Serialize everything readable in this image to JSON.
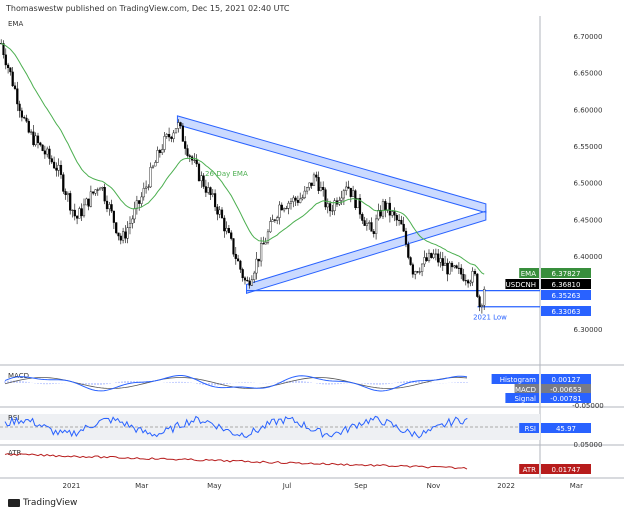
{
  "header": {
    "published": "Thomaswestw published on TradingView.com, Dec 15, 2021 02:40 UTC"
  },
  "footer": {
    "brand": "TradingView"
  },
  "colors": {
    "ema": "#4caf50",
    "up": "#ffffff",
    "down": "#000000",
    "blue": "#2962ff",
    "triangle_fill": "#a9c2ff",
    "atr": "#b71c1c",
    "macd_label": "#787b86"
  },
  "chart_data": [
    {
      "type": "candlestick",
      "pane": "main",
      "indicator_label": "EMA",
      "symbol": "USDCNH",
      "y_ticks": [
        "6.70000",
        "6.65000",
        "6.60000",
        "6.55000",
        "6.50000",
        "6.45000",
        "6.40000",
        "6.30000"
      ],
      "ylim": [
        6.28,
        6.73
      ],
      "x_ticks": [
        "2021",
        "Mar",
        "May",
        "Jul",
        "Sep",
        "Nov",
        "2022",
        "Mar"
      ],
      "xlim": [
        "2020-11-02",
        "2022-04-10"
      ],
      "price_path": [
        [
          "2020-11-03",
          6.69
        ],
        [
          "2020-11-25",
          6.57
        ],
        [
          "2020-12-20",
          6.52
        ],
        [
          "2021-01-05",
          6.45
        ],
        [
          "2021-01-25",
          6.5
        ],
        [
          "2021-02-12",
          6.42
        ],
        [
          "2021-03-01",
          6.48
        ],
        [
          "2021-03-18",
          6.55
        ],
        [
          "2021-03-31",
          6.58
        ],
        [
          "2021-04-15",
          6.52
        ],
        [
          "2021-05-05",
          6.46
        ],
        [
          "2021-05-28",
          6.36
        ],
        [
          "2021-06-10",
          6.41
        ],
        [
          "2021-06-25",
          6.47
        ],
        [
          "2021-07-15",
          6.48
        ],
        [
          "2021-07-25",
          6.51
        ],
        [
          "2021-08-05",
          6.46
        ],
        [
          "2021-08-20",
          6.5
        ],
        [
          "2021-09-10",
          6.43
        ],
        [
          "2021-09-20",
          6.47
        ],
        [
          "2021-10-05",
          6.44
        ],
        [
          "2021-10-15",
          6.38
        ],
        [
          "2021-11-01",
          6.4
        ],
        [
          "2021-11-15",
          6.38
        ],
        [
          "2021-12-06",
          6.37
        ],
        [
          "2021-12-10",
          6.33
        ],
        [
          "2021-12-15",
          6.368
        ]
      ],
      "annotations": {
        "ema_label": "26-Day EMA",
        "low_label": "2021 Low",
        "triangle_upper": [
          [
            "2021-03-31",
            6.585
          ],
          [
            "2021-12-15",
            6.465
          ]
        ],
        "triangle_lower": [
          [
            "2021-05-28",
            6.355
          ],
          [
            "2021-12-15",
            6.455
          ]
        ],
        "support": 6.35263,
        "low": 6.33063
      },
      "labels": [
        {
          "name": "EMA",
          "value": "6.37827"
        },
        {
          "name": "USDCNH",
          "value": "6.36810"
        },
        {
          "value": "6.35263"
        },
        {
          "value": "6.33063"
        }
      ]
    },
    {
      "type": "line",
      "pane": "macd",
      "indicator_label": "MACD",
      "y_ticks": [
        "-0.05000"
      ],
      "labels": [
        {
          "name": "Histogram",
          "value": "0.00127"
        },
        {
          "name": "MACD",
          "value": "-0.00653"
        },
        {
          "name": "Signal",
          "value": "-0.00781"
        }
      ]
    },
    {
      "type": "line",
      "pane": "rsi",
      "indicator_label": "RSI",
      "y_ticks": [
        "0.05000"
      ],
      "labels": [
        {
          "name": "RSI",
          "value": "45.97"
        }
      ]
    },
    {
      "type": "line",
      "pane": "atr",
      "indicator_label": "ATR",
      "labels": [
        {
          "name": "ATR",
          "value": "0.01747"
        }
      ]
    }
  ]
}
